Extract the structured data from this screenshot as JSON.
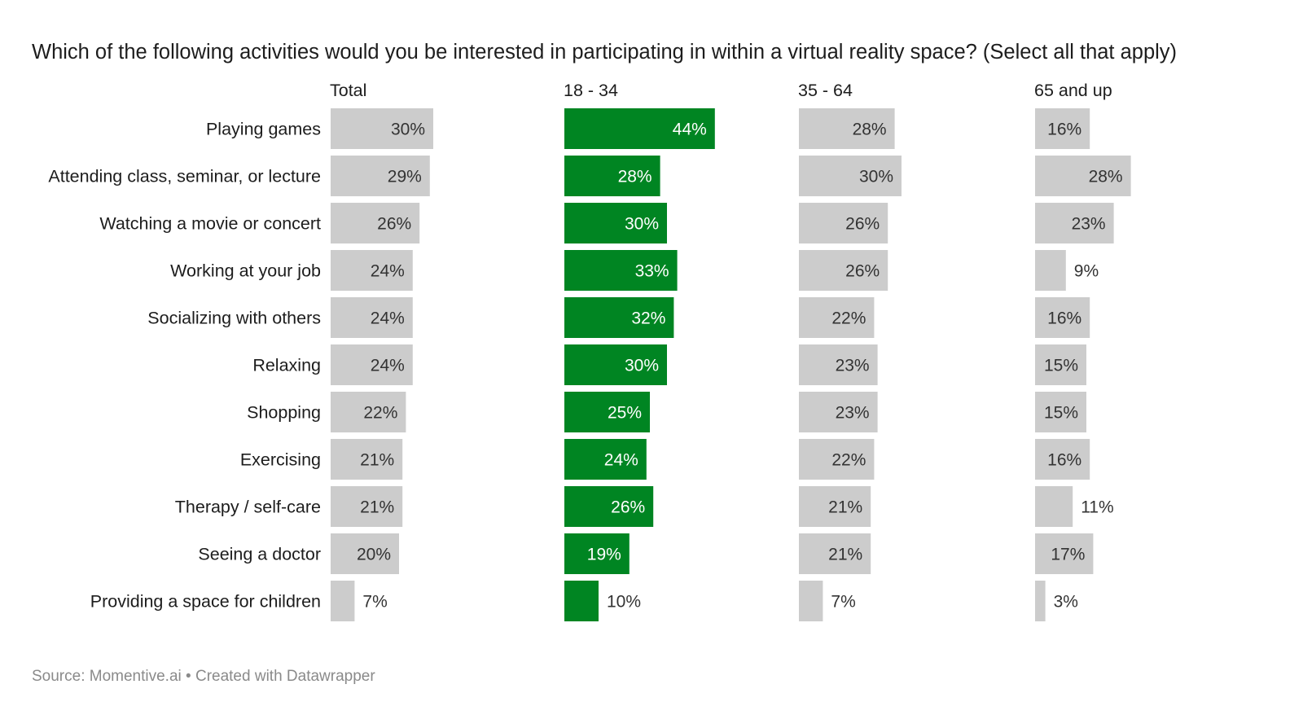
{
  "chart_data": {
    "type": "bar",
    "orientation": "horizontal",
    "layout": "small-multiples",
    "title": "Which of the following activities would you be interested in participating in within a virtual reality space? (Select all that apply)",
    "footer": {
      "source": "Source: Momentive.ai",
      "separator": "•",
      "credit": "Created with Datawrapper"
    },
    "categories": [
      "Playing games",
      "Attending class, seminar, or lecture",
      "Watching a movie or concert",
      "Working at your job",
      "Socializing with others",
      "Relaxing",
      "Shopping",
      "Exercising",
      "Therapy / self-care",
      "Seeing a doctor",
      "Providing a space for children"
    ],
    "series": [
      {
        "name": "Total",
        "values": [
          30,
          29,
          26,
          24,
          24,
          24,
          22,
          21,
          21,
          20,
          7
        ],
        "color": "#cccccc",
        "highlight": false
      },
      {
        "name": "18 - 34",
        "values": [
          44,
          28,
          30,
          33,
          32,
          30,
          25,
          24,
          26,
          19,
          10
        ],
        "color": "#008522",
        "highlight": true
      },
      {
        "name": "35 - 64",
        "values": [
          28,
          30,
          26,
          26,
          22,
          23,
          23,
          22,
          21,
          21,
          7
        ],
        "color": "#cccccc",
        "highlight": false
      },
      {
        "name": "65 and up",
        "values": [
          16,
          28,
          23,
          9,
          16,
          15,
          15,
          16,
          11,
          17,
          3
        ],
        "color": "#cccccc",
        "highlight": false
      }
    ],
    "value_suffix": "%",
    "xlim": [
      0,
      100
    ],
    "grid": false,
    "legend": "none",
    "label_colors": {
      "inside_dark": "#333333",
      "inside_highlight": "#ffffff",
      "outside": "#333333"
    }
  }
}
